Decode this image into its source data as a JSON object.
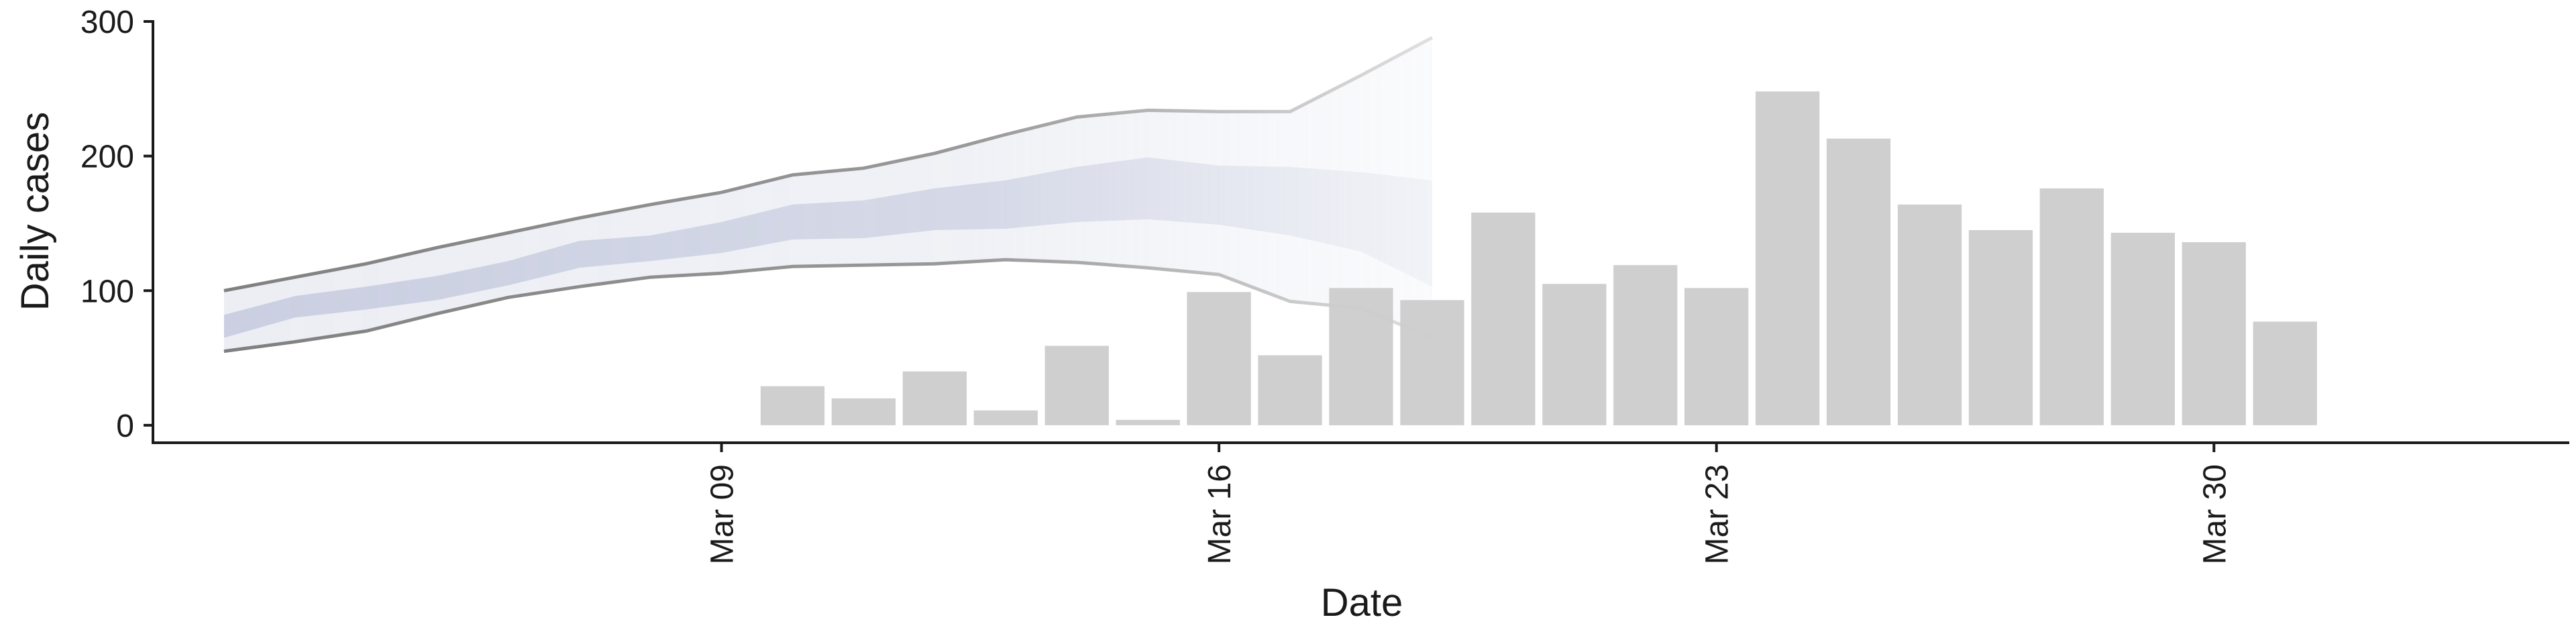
{
  "chart_data": {
    "type": "bar",
    "title": "",
    "xlabel": "Date",
    "ylabel": "Daily cases",
    "ylim": [
      -13,
      300
    ],
    "xlim": [
      "2020-03-01",
      "2020-04-04"
    ],
    "y_ticks": [
      0,
      100,
      200,
      300
    ],
    "x_ticks": [
      {
        "date": "2020-03-09",
        "label": "Mar 09"
      },
      {
        "date": "2020-03-16",
        "label": "Mar 16"
      },
      {
        "date": "2020-03-23",
        "label": "Mar 23"
      },
      {
        "date": "2020-03-30",
        "label": "Mar 30"
      }
    ],
    "grid": false,
    "legend": "none",
    "colors": {
      "bars": "#cccccc",
      "band_outer": "#c5cade",
      "band_inner": "#aeb6d2",
      "band_lines": "#808080",
      "axis": "#1a1a1a"
    },
    "bars": {
      "name": "",
      "x": [
        "2020-03-10",
        "2020-03-11",
        "2020-03-12",
        "2020-03-13",
        "2020-03-14",
        "2020-03-15",
        "2020-03-16",
        "2020-03-17",
        "2020-03-18",
        "2020-03-19",
        "2020-03-20",
        "2020-03-21",
        "2020-03-22",
        "2020-03-23",
        "2020-03-24",
        "2020-03-25",
        "2020-03-26",
        "2020-03-27",
        "2020-03-28",
        "2020-03-29",
        "2020-03-30",
        "2020-03-31"
      ],
      "values": [
        29,
        20,
        40,
        11,
        59,
        4,
        99,
        52,
        102,
        93,
        158,
        105,
        119,
        102,
        248,
        213,
        164,
        145,
        176,
        143,
        136,
        77
      ]
    },
    "projection": {
      "x": [
        "2020-03-02",
        "2020-03-03",
        "2020-03-04",
        "2020-03-05",
        "2020-03-06",
        "2020-03-07",
        "2020-03-08",
        "2020-03-09",
        "2020-03-10",
        "2020-03-11",
        "2020-03-12",
        "2020-03-13",
        "2020-03-14",
        "2020-03-15",
        "2020-03-16",
        "2020-03-17",
        "2020-03-18",
        "2020-03-19",
        "2020-03-20",
        "2020-03-21",
        "2020-03-22"
      ],
      "outer_upper": [
        100,
        110,
        120,
        132,
        143,
        154,
        164,
        173,
        186,
        191,
        202,
        216,
        229,
        234,
        233,
        233,
        260,
        288,
        null,
        null,
        null
      ],
      "outer_lower": [
        55,
        62,
        70,
        83,
        95,
        103,
        110,
        113,
        118,
        119,
        120,
        123,
        121,
        117,
        112,
        92,
        87,
        65,
        null,
        null,
        null
      ],
      "inner_upper": [
        82,
        96,
        103,
        111,
        122,
        137,
        141,
        151,
        164,
        167,
        176,
        182,
        192,
        199,
        193,
        192,
        188,
        182,
        null,
        null,
        null
      ],
      "inner_lower": [
        65,
        80,
        86,
        93,
        104,
        117,
        122,
        128,
        138,
        139,
        145,
        146,
        151,
        153,
        149,
        141,
        129,
        103,
        null,
        null,
        null
      ]
    }
  }
}
